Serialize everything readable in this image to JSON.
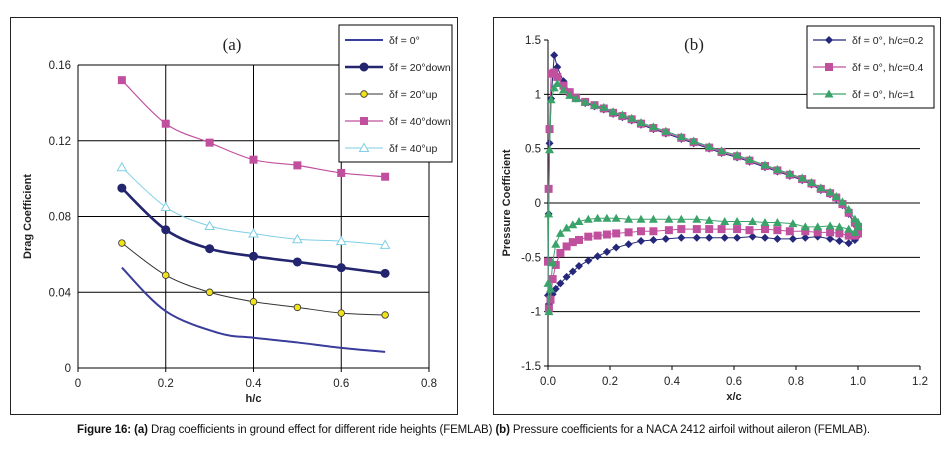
{
  "caption": {
    "bold_prefix": "Figure 16: (a)",
    "text_a": " Drag coefficients in ground effect for different ride heights (FEMLAB) ",
    "bold_b": "(b)",
    "text_b": " Pressure coefficients for a NACA 2412 airfoil without aileron (FEMLAB)."
  },
  "chart_data": [
    {
      "type": "line",
      "panel_label": "(a)",
      "title": "(a)",
      "xlabel": "h/c",
      "ylabel": "Drag Coefficient",
      "xlim": [
        0,
        0.8
      ],
      "ylim": [
        0,
        0.16
      ],
      "xticks": [
        0,
        0.2,
        0.4,
        0.6,
        0.8
      ],
      "xtick_labels": [
        "0",
        "0.2",
        "0.4",
        "0.6",
        "0.8"
      ],
      "yticks": [
        0,
        0.04,
        0.08,
        0.12,
        0.16
      ],
      "ytick_labels": [
        "0",
        "0.04",
        "0.08",
        "0.12",
        "0.16"
      ],
      "grid": "major, both axes",
      "legend_position": "top-right",
      "series": [
        {
          "name": "δf = 0°",
          "color": "#3a3d9c",
          "marker": "none",
          "x": [
            0.1,
            0.2,
            0.32,
            0.4,
            0.5,
            0.6,
            0.7
          ],
          "y": [
            0.053,
            0.03,
            0.0185,
            0.016,
            0.0135,
            0.0106,
            0.0085
          ]
        },
        {
          "name": "δf = 20°down",
          "color": "#23256e",
          "marker": "circle",
          "x": [
            0.1,
            0.2,
            0.3,
            0.4,
            0.5,
            0.6,
            0.7
          ],
          "y": [
            0.095,
            0.073,
            0.063,
            0.059,
            0.056,
            0.053,
            0.05
          ]
        },
        {
          "name": "δf = 20°up",
          "color": "#333333",
          "marker": "circle-yellow",
          "x": [
            0.1,
            0.2,
            0.3,
            0.4,
            0.5,
            0.6,
            0.7
          ],
          "y": [
            0.066,
            0.049,
            0.04,
            0.035,
            0.032,
            0.029,
            0.028
          ]
        },
        {
          "name": "δf = 40°down",
          "color": "#c0509e",
          "marker": "square",
          "x": [
            0.1,
            0.2,
            0.3,
            0.4,
            0.5,
            0.6,
            0.7
          ],
          "y": [
            0.152,
            0.129,
            0.119,
            0.11,
            0.107,
            0.103,
            0.101
          ]
        },
        {
          "name": "δf = 40°up",
          "color": "#7fcfe6",
          "marker": "triangle-open",
          "x": [
            0.1,
            0.2,
            0.3,
            0.4,
            0.5,
            0.6,
            0.7
          ],
          "y": [
            0.106,
            0.085,
            0.075,
            0.071,
            0.068,
            0.067,
            0.065
          ]
        }
      ]
    },
    {
      "type": "line",
      "panel_label": "(b)",
      "title": "(b)",
      "xlabel": "x/c",
      "ylabel": "Pressure Coefficient",
      "xlim": [
        0,
        1.2
      ],
      "ylim": [
        -1.5,
        1.5
      ],
      "xticks": [
        0,
        0.2,
        0.4,
        0.6,
        0.8,
        1.0,
        1.2
      ],
      "xtick_labels": [
        "0.0",
        "0.2",
        "0.4",
        "0.6",
        "0.8",
        "1.0",
        "1.2"
      ],
      "yticks": [
        -1.5,
        -1,
        -0.5,
        0,
        0.5,
        1,
        1.5
      ],
      "ytick_labels": [
        "-1.5",
        "-1",
        "-0.5",
        "0",
        "0.5",
        "1",
        "1.5"
      ],
      "grid": "major horizontal",
      "legend_position": "top-right",
      "series": [
        {
          "name": "δf = 0°, h/c=0.2",
          "color": "#25287a",
          "marker": "diamond",
          "x": [
            1.0,
            0.99,
            0.97,
            0.95,
            0.93,
            0.91,
            0.88,
            0.85,
            0.82,
            0.78,
            0.74,
            0.7,
            0.65,
            0.61,
            0.56,
            0.52,
            0.47,
            0.43,
            0.38,
            0.34,
            0.3,
            0.27,
            0.24,
            0.21,
            0.18,
            0.15,
            0.12,
            0.09,
            0.07,
            0.05,
            0.03,
            0.02,
            0.01,
            0.005,
            0.002,
            0.0,
            0.003,
            0.008,
            0.015,
            0.025,
            0.04,
            0.06,
            0.08,
            0.1,
            0.13,
            0.16,
            0.19,
            0.22,
            0.26,
            0.3,
            0.34,
            0.38,
            0.43,
            0.48,
            0.52,
            0.57,
            0.61,
            0.66,
            0.7,
            0.74,
            0.79,
            0.83,
            0.87,
            0.91,
            0.94,
            0.97,
            0.99,
            1.0
          ],
          "y": [
            -0.25,
            -0.2,
            -0.1,
            -0.02,
            0.04,
            0.08,
            0.12,
            0.17,
            0.21,
            0.25,
            0.29,
            0.33,
            0.38,
            0.42,
            0.46,
            0.5,
            0.55,
            0.59,
            0.64,
            0.68,
            0.72,
            0.76,
            0.79,
            0.82,
            0.86,
            0.89,
            0.92,
            0.96,
            1.02,
            1.12,
            1.25,
            1.36,
            0.96,
            0.55,
            -0.1,
            -0.85,
            -0.93,
            -0.88,
            -0.84,
            -0.79,
            -0.74,
            -0.68,
            -0.63,
            -0.58,
            -0.53,
            -0.49,
            -0.45,
            -0.41,
            -0.38,
            -0.35,
            -0.34,
            -0.33,
            -0.32,
            -0.32,
            -0.32,
            -0.32,
            -0.32,
            -0.31,
            -0.32,
            -0.33,
            -0.33,
            -0.32,
            -0.31,
            -0.33,
            -0.35,
            -0.37,
            -0.34,
            -0.3
          ]
        },
        {
          "name": "δf = 0°, h/c=0.4",
          "color": "#c0509e",
          "marker": "square",
          "x": [
            1.0,
            0.99,
            0.97,
            0.95,
            0.93,
            0.91,
            0.88,
            0.85,
            0.82,
            0.78,
            0.74,
            0.7,
            0.65,
            0.61,
            0.56,
            0.52,
            0.47,
            0.43,
            0.38,
            0.34,
            0.3,
            0.27,
            0.24,
            0.21,
            0.18,
            0.15,
            0.12,
            0.09,
            0.07,
            0.05,
            0.03,
            0.02,
            0.01,
            0.005,
            0.002,
            0.0,
            0.003,
            0.008,
            0.015,
            0.025,
            0.04,
            0.06,
            0.08,
            0.1,
            0.13,
            0.16,
            0.19,
            0.22,
            0.26,
            0.3,
            0.34,
            0.39,
            0.43,
            0.48,
            0.52,
            0.56,
            0.61,
            0.65,
            0.7,
            0.74,
            0.78,
            0.83,
            0.87,
            0.91,
            0.94,
            0.97,
            0.99,
            1.0
          ],
          "y": [
            -0.22,
            -0.18,
            -0.09,
            -0.01,
            0.05,
            0.09,
            0.13,
            0.18,
            0.22,
            0.26,
            0.3,
            0.34,
            0.39,
            0.43,
            0.47,
            0.51,
            0.56,
            0.6,
            0.65,
            0.69,
            0.73,
            0.77,
            0.8,
            0.83,
            0.87,
            0.9,
            0.93,
            0.97,
            1.02,
            1.08,
            1.16,
            1.2,
            1.19,
            0.68,
            0.13,
            -0.54,
            -0.97,
            -0.89,
            -0.7,
            -0.57,
            -0.46,
            -0.4,
            -0.36,
            -0.34,
            -0.31,
            -0.3,
            -0.29,
            -0.28,
            -0.27,
            -0.26,
            -0.26,
            -0.25,
            -0.24,
            -0.24,
            -0.24,
            -0.24,
            -0.24,
            -0.25,
            -0.24,
            -0.25,
            -0.26,
            -0.26,
            -0.27,
            -0.27,
            -0.28,
            -0.3,
            -0.3,
            -0.28
          ]
        },
        {
          "name": "δf = 0°, h/c=1",
          "color": "#3aa36a",
          "marker": "triangle",
          "x": [
            1.0,
            0.99,
            0.97,
            0.95,
            0.93,
            0.91,
            0.88,
            0.85,
            0.82,
            0.78,
            0.74,
            0.7,
            0.65,
            0.61,
            0.56,
            0.52,
            0.47,
            0.43,
            0.38,
            0.34,
            0.3,
            0.27,
            0.24,
            0.21,
            0.18,
            0.15,
            0.12,
            0.09,
            0.07,
            0.05,
            0.03,
            0.02,
            0.01,
            0.005,
            0.002,
            0.0,
            0.003,
            0.008,
            0.015,
            0.025,
            0.04,
            0.06,
            0.08,
            0.1,
            0.13,
            0.16,
            0.19,
            0.22,
            0.26,
            0.3,
            0.34,
            0.39,
            0.43,
            0.48,
            0.52,
            0.57,
            0.61,
            0.66,
            0.7,
            0.74,
            0.79,
            0.83,
            0.87,
            0.91,
            0.94,
            0.97,
            0.99,
            1.0
          ],
          "y": [
            -0.18,
            -0.15,
            -0.06,
            0.01,
            0.06,
            0.1,
            0.14,
            0.19,
            0.23,
            0.27,
            0.31,
            0.35,
            0.4,
            0.44,
            0.48,
            0.52,
            0.57,
            0.61,
            0.66,
            0.7,
            0.74,
            0.78,
            0.81,
            0.84,
            0.88,
            0.9,
            0.93,
            0.96,
            0.99,
            1.04,
            1.1,
            1.06,
            0.95,
            0.49,
            -0.1,
            -0.74,
            -1.0,
            -0.79,
            -0.55,
            -0.38,
            -0.28,
            -0.23,
            -0.2,
            -0.17,
            -0.15,
            -0.14,
            -0.14,
            -0.14,
            -0.15,
            -0.15,
            -0.15,
            -0.15,
            -0.15,
            -0.15,
            -0.16,
            -0.17,
            -0.17,
            -0.17,
            -0.18,
            -0.18,
            -0.19,
            -0.22,
            -0.22,
            -0.21,
            -0.22,
            -0.24,
            -0.27,
            -0.22
          ]
        }
      ]
    }
  ]
}
